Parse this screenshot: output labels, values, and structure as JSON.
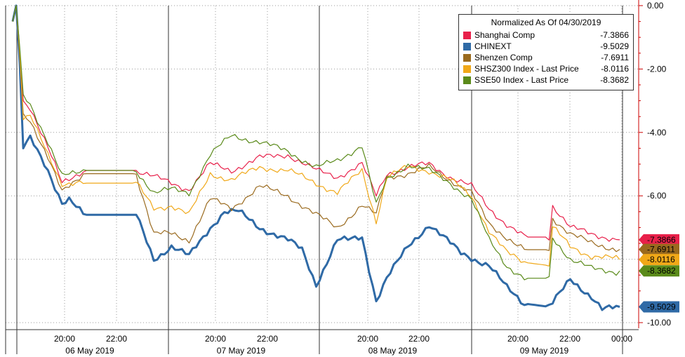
{
  "chart_data": {
    "type": "line",
    "y_axis": {
      "position": "right",
      "range": [
        -10.0,
        0.0
      ],
      "tick_labels": [
        "0.00",
        "-2.00",
        "-4.00",
        "-6.00",
        "-8.00",
        "-10.00"
      ],
      "ticks": [
        0,
        -2,
        -4,
        -6,
        -8,
        -10
      ]
    },
    "x_axis": {
      "time_labels": [
        "20:00",
        "22:00",
        "20:00",
        "22:00",
        "20:00",
        "22:00",
        "20:00",
        "22:00",
        "00:00"
      ],
      "day_labels": [
        "06 May 2019",
        "07 May 2019",
        "08 May 2019",
        "09 May 2019"
      ]
    },
    "grid": true,
    "legend": {
      "title": "Normalized As Of 04/30/2019",
      "placement": "top-right",
      "entries": [
        {
          "name": "Shanghai Comp",
          "value": "-7.3866",
          "color": "#e8204a"
        },
        {
          "name": "CHINEXT",
          "value": "-9.5029",
          "color": "#2f6aa6"
        },
        {
          "name": "Shenzen Comp",
          "value": "-7.6911",
          "color": "#9a6a1e"
        },
        {
          "name": "SHSZ300 Index - Last Price",
          "value": "-8.0116",
          "color": "#f0a818"
        },
        {
          "name": "SSE50 Index - Last Price",
          "value": "-8.3682",
          "color": "#5a8a1a"
        }
      ]
    },
    "series": [
      {
        "name": "Shanghai Comp",
        "color": "#e8204a",
        "last": "-7.3866",
        "last_value": -7.3866,
        "knots": [
          [
            0,
            -0.5
          ],
          [
            1,
            0
          ],
          [
            2,
            -1.4
          ],
          [
            3,
            -3
          ],
          [
            5,
            -3.2
          ],
          [
            10,
            -4.5
          ],
          [
            14,
            -5.6
          ],
          [
            20,
            -5.2
          ],
          [
            35,
            -5.2
          ],
          [
            45,
            -5.6
          ],
          [
            50,
            -5.8
          ],
          [
            56,
            -5
          ],
          [
            62,
            -5.2
          ],
          [
            70,
            -4.8
          ],
          [
            78,
            -4.7
          ],
          [
            86,
            -5.2
          ],
          [
            92,
            -5.4
          ],
          [
            99,
            -5.0
          ],
          [
            103,
            -6.0
          ],
          [
            106,
            -5.3
          ],
          [
            112,
            -5.1
          ],
          [
            118,
            -5.0
          ],
          [
            124,
            -5.4
          ],
          [
            130,
            -5.7
          ],
          [
            135,
            -6.4
          ],
          [
            140,
            -6.9
          ],
          [
            145,
            -7.3
          ],
          [
            152,
            -7.3
          ],
          [
            153,
            -6.3
          ],
          [
            158,
            -7
          ],
          [
            164,
            -7.2
          ],
          [
            172,
            -7.4
          ]
        ]
      },
      {
        "name": "CHINEXT",
        "color": "#2f6aa6",
        "last": "-9.5029",
        "last_value": -9.5029,
        "knots": [
          [
            0,
            -0.5
          ],
          [
            1,
            0
          ],
          [
            2,
            -1.8
          ],
          [
            3,
            -4.5
          ],
          [
            5,
            -4.2
          ],
          [
            10,
            -5.2
          ],
          [
            14,
            -6.2
          ],
          [
            16,
            -6.1
          ],
          [
            20,
            -6.6
          ],
          [
            35,
            -6.6
          ],
          [
            40,
            -8.0
          ],
          [
            45,
            -7.6
          ],
          [
            50,
            -7.9
          ],
          [
            56,
            -7.0
          ],
          [
            60,
            -6.5
          ],
          [
            64,
            -6.5
          ],
          [
            70,
            -7.0
          ],
          [
            78,
            -7.4
          ],
          [
            82,
            -7.7
          ],
          [
            86,
            -8.8
          ],
          [
            92,
            -7.4
          ],
          [
            95,
            -7.4
          ],
          [
            99,
            -7.3
          ],
          [
            103,
            -9.3
          ],
          [
            106,
            -8.6
          ],
          [
            112,
            -7.6
          ],
          [
            118,
            -6.9
          ],
          [
            121,
            -7.2
          ],
          [
            127,
            -7.8
          ],
          [
            135,
            -8.2
          ],
          [
            140,
            -8.9
          ],
          [
            145,
            -9.4
          ],
          [
            152,
            -9.5
          ],
          [
            153,
            -9.4
          ],
          [
            158,
            -8.6
          ],
          [
            164,
            -9.2
          ],
          [
            167,
            -9.6
          ],
          [
            172,
            -9.5
          ]
        ]
      },
      {
        "name": "Shenzen Comp",
        "color": "#9a6a1e",
        "last": "-7.6911",
        "last_value": -7.6911,
        "knots": [
          [
            0,
            -0.5
          ],
          [
            1,
            0
          ],
          [
            2,
            -1.6
          ],
          [
            3,
            -3.4
          ],
          [
            5,
            -3.6
          ],
          [
            10,
            -4.8
          ],
          [
            14,
            -5.9
          ],
          [
            20,
            -5.3
          ],
          [
            35,
            -5.3
          ],
          [
            40,
            -7.2
          ],
          [
            45,
            -7.2
          ],
          [
            50,
            -7.4
          ],
          [
            56,
            -6.1
          ],
          [
            62,
            -6.4
          ],
          [
            70,
            -5.7
          ],
          [
            78,
            -6.0
          ],
          [
            86,
            -6.6
          ],
          [
            92,
            -7.0
          ],
          [
            99,
            -6.3
          ],
          [
            103,
            -6.6
          ],
          [
            106,
            -5.4
          ],
          [
            112,
            -5.3
          ],
          [
            118,
            -5.1
          ],
          [
            124,
            -5.5
          ],
          [
            130,
            -5.9
          ],
          [
            135,
            -6.9
          ],
          [
            140,
            -7.3
          ],
          [
            145,
            -7.7
          ],
          [
            152,
            -7.7
          ],
          [
            153,
            -6.7
          ],
          [
            158,
            -7.2
          ],
          [
            164,
            -7.5
          ],
          [
            172,
            -7.7
          ]
        ]
      },
      {
        "name": "SHSZ300 Index - Last Price",
        "color": "#f0a818",
        "last": "-8.0116",
        "last_value": -8.0116,
        "knots": [
          [
            0,
            -0.5
          ],
          [
            1,
            0
          ],
          [
            2,
            -1.5
          ],
          [
            3,
            -3.6
          ],
          [
            5,
            -3.5
          ],
          [
            10,
            -4.7
          ],
          [
            14,
            -5.6
          ],
          [
            20,
            -5.6
          ],
          [
            35,
            -5.6
          ],
          [
            40,
            -6.4
          ],
          [
            45,
            -6.3
          ],
          [
            50,
            -6.6
          ],
          [
            56,
            -5.3
          ],
          [
            62,
            -5.5
          ],
          [
            70,
            -5.1
          ],
          [
            78,
            -5.2
          ],
          [
            86,
            -5.6
          ],
          [
            92,
            -5.9
          ],
          [
            99,
            -5.2
          ],
          [
            103,
            -6.8
          ],
          [
            106,
            -5.4
          ],
          [
            112,
            -5.1
          ],
          [
            118,
            -5.2
          ],
          [
            124,
            -5.5
          ],
          [
            130,
            -6.0
          ],
          [
            135,
            -7.1
          ],
          [
            140,
            -7.8
          ],
          [
            145,
            -8.1
          ],
          [
            152,
            -8.2
          ],
          [
            153,
            -7.0
          ],
          [
            158,
            -7.6
          ],
          [
            164,
            -7.9
          ],
          [
            172,
            -8.0
          ]
        ]
      },
      {
        "name": "SSE50 Index - Last Price",
        "color": "#5a8a1a",
        "last": "-8.3682",
        "last_value": -8.3682,
        "knots": [
          [
            0,
            -0.5
          ],
          [
            1,
            0
          ],
          [
            2,
            -1.3
          ],
          [
            3,
            -2.8
          ],
          [
            5,
            -3.1
          ],
          [
            10,
            -4.3
          ],
          [
            14,
            -5.4
          ],
          [
            20,
            -5.2
          ],
          [
            35,
            -5.2
          ],
          [
            40,
            -5.9
          ],
          [
            45,
            -5.8
          ],
          [
            50,
            -5.9
          ],
          [
            56,
            -4.7
          ],
          [
            62,
            -4.1
          ],
          [
            70,
            -4.3
          ],
          [
            78,
            -4.6
          ],
          [
            86,
            -5.1
          ],
          [
            92,
            -4.9
          ],
          [
            99,
            -4.4
          ],
          [
            103,
            -6.3
          ],
          [
            106,
            -5.5
          ],
          [
            112,
            -5.0
          ],
          [
            118,
            -5.2
          ],
          [
            124,
            -5.6
          ],
          [
            130,
            -6.1
          ],
          [
            135,
            -7.4
          ],
          [
            140,
            -8.2
          ],
          [
            145,
            -8.6
          ],
          [
            152,
            -8.6
          ],
          [
            153,
            -7.3
          ],
          [
            158,
            -8.0
          ],
          [
            164,
            -8.3
          ],
          [
            172,
            -8.4
          ]
        ]
      }
    ]
  }
}
